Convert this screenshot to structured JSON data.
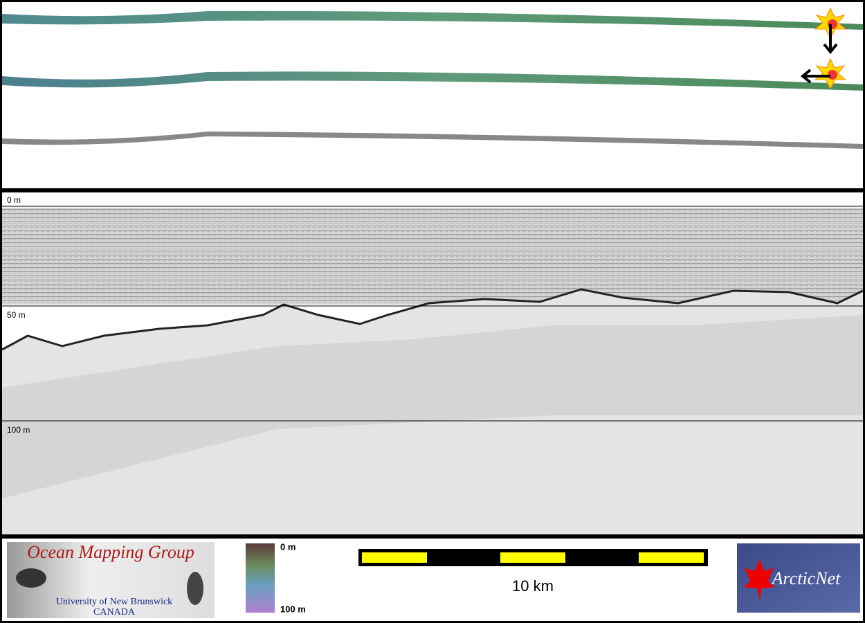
{
  "profile": {
    "depth_labels": [
      "0 m",
      "50 m",
      "100 m"
    ]
  },
  "footer": {
    "logo": {
      "title": "Ocean Mapping Group",
      "university": "University of New Brunswick",
      "country": "CANADA"
    },
    "colorbar": {
      "top_label": "0 m",
      "bottom_label": "100 m"
    },
    "scale_bar": {
      "label": "10 km"
    },
    "partner_logo": {
      "label": "ArcticNet"
    }
  }
}
